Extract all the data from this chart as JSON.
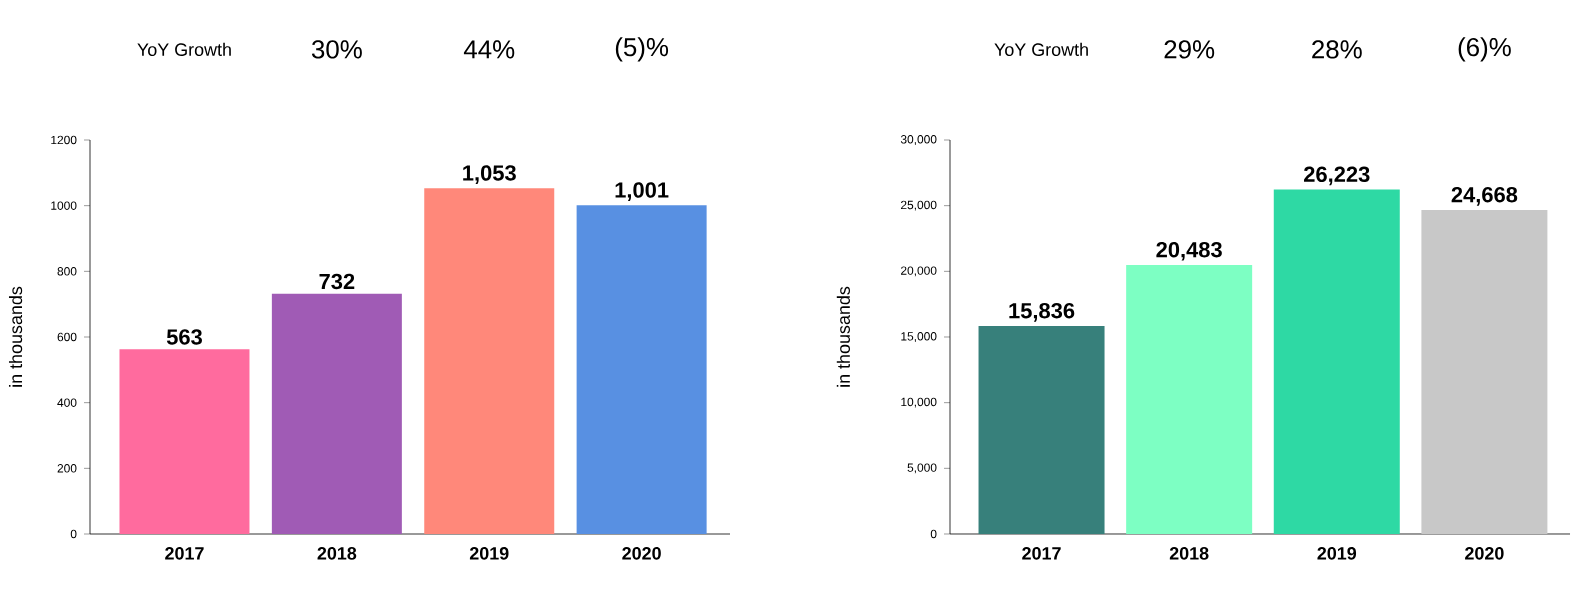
{
  "chart_data": [
    {
      "type": "bar",
      "categories": [
        "2017",
        "2018",
        "2019",
        "2020"
      ],
      "values": [
        563,
        732,
        1053,
        1001
      ],
      "colors": [
        "#ff6b9e",
        "#a05bb5",
        "#ff887a",
        "#5890e2"
      ],
      "value_labels": [
        "563",
        "732",
        "1,053",
        "1,001"
      ],
      "ylabel": "in thousands",
      "ylim": [
        0,
        1200
      ],
      "yticks": [
        0,
        200,
        400,
        600,
        800,
        1000,
        1200
      ],
      "annotations": [
        "YoY Growth",
        "30%",
        "44%",
        "(5)%"
      ]
    },
    {
      "type": "bar",
      "categories": [
        "2017",
        "2018",
        "2019",
        "2020"
      ],
      "values": [
        15836,
        20483,
        26223,
        24668
      ],
      "colors": [
        "#37807b",
        "#7dffc3",
        "#2ed9a4",
        "#c8c8c8"
      ],
      "value_labels": [
        "15,836",
        "20,483",
        "26,223",
        "24,668"
      ],
      "ylabel": "in thousands",
      "ylim": [
        0,
        30000
      ],
      "yticks": [
        0,
        {
          "value": 5000,
          "label": "5,000"
        },
        {
          "value": 10000,
          "label": "10,000"
        },
        {
          "value": 15000,
          "label": "15,000"
        },
        {
          "value": 20000,
          "label": "20,000"
        },
        {
          "value": 25000,
          "label": "25,000"
        },
        {
          "value": 30000,
          "label": "30,000"
        }
      ],
      "annotations": [
        "YoY Growth",
        "29%",
        "28%",
        "(6)%"
      ]
    }
  ]
}
